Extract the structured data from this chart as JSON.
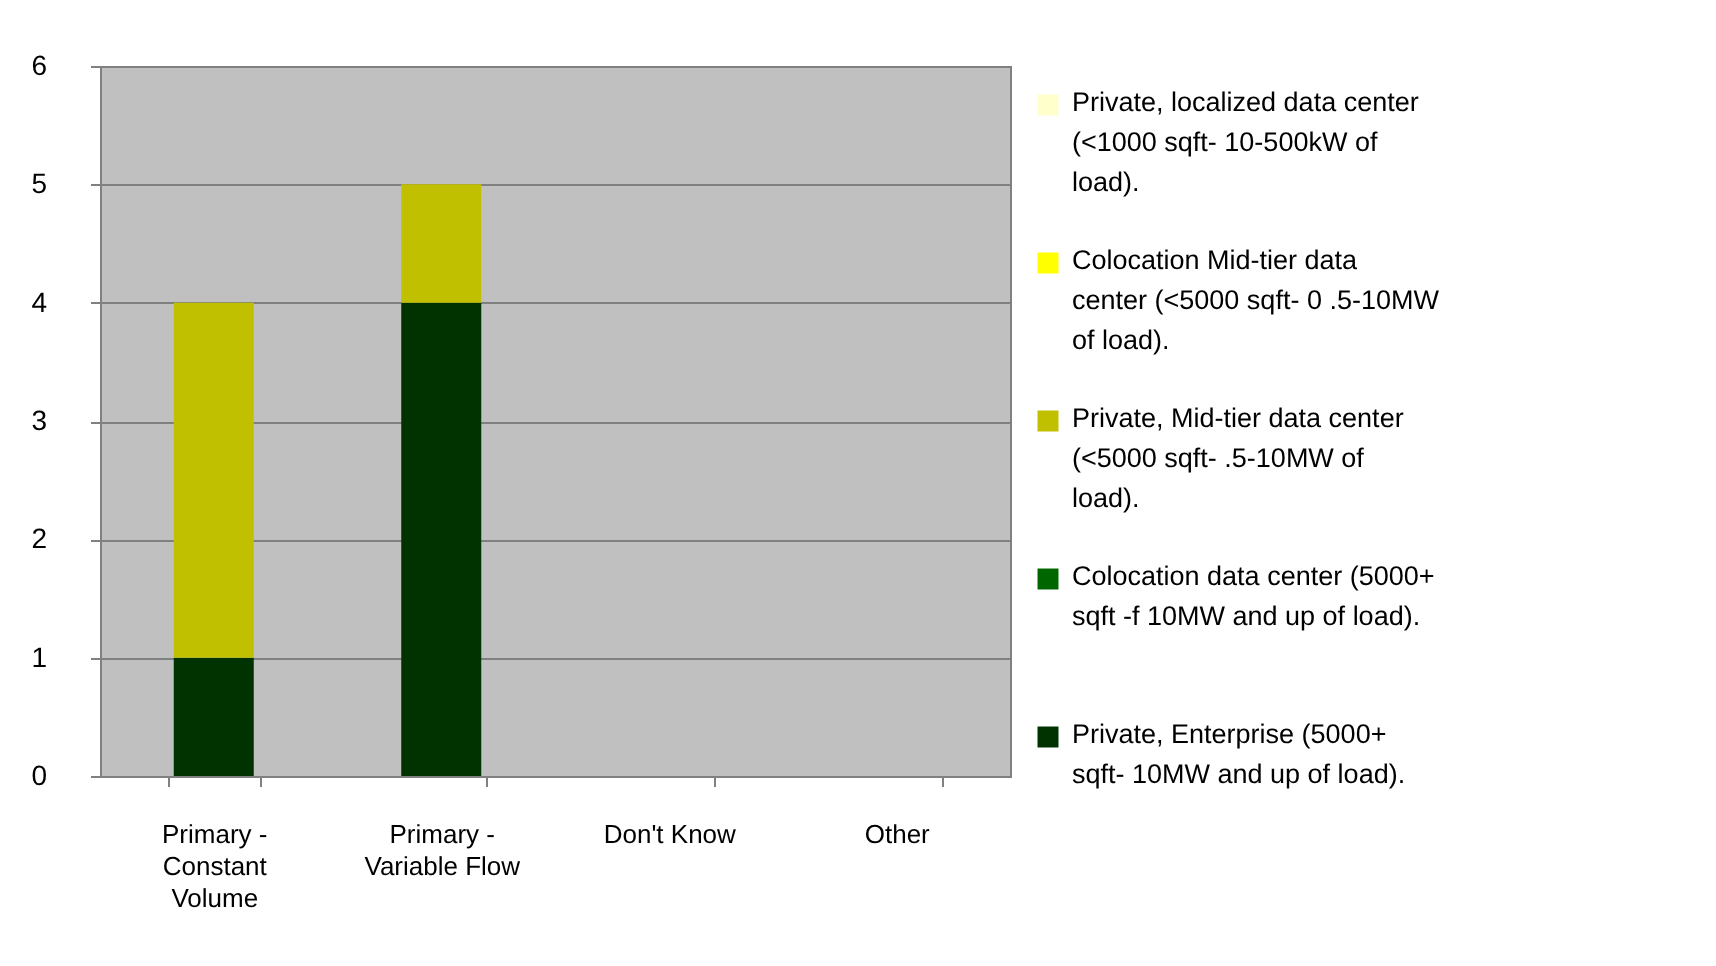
{
  "chart_data": {
    "type": "bar",
    "stacked": true,
    "categories": [
      "Primary - Constant Volume",
      "Primary - Variable Flow",
      "Don't Know",
      "Other"
    ],
    "series": [
      {
        "name": "Private, Enterprise  (5000+ sqft- 10MW and up of load).",
        "color": "#003300",
        "values": [
          1,
          4,
          0,
          0
        ]
      },
      {
        "name": "Colocation data center (5000+ sqft -f 10MW and up of load).",
        "color": "#006600",
        "values": [
          0,
          0,
          0,
          0
        ]
      },
      {
        "name": "Private, Mid-tier data center (<5000 sqft-  .5-10MW of load).",
        "color": "#c0c000",
        "values": [
          3,
          1,
          0,
          0
        ]
      },
      {
        "name": "Colocation Mid-tier data center (<5000 sqft- 0 .5-10MW of load).",
        "color": "#ffff00",
        "values": [
          0,
          0,
          0,
          0
        ]
      },
      {
        "name": "Private, localized data center (<1000 sqft- 10-500kW of load).",
        "color": "#ffffcc",
        "values": [
          0,
          0,
          0,
          0
        ]
      }
    ],
    "ylim": [
      0,
      6
    ],
    "yticks": [
      0,
      1,
      2,
      3,
      4,
      5,
      6
    ],
    "grid": "y",
    "legend": "right"
  }
}
